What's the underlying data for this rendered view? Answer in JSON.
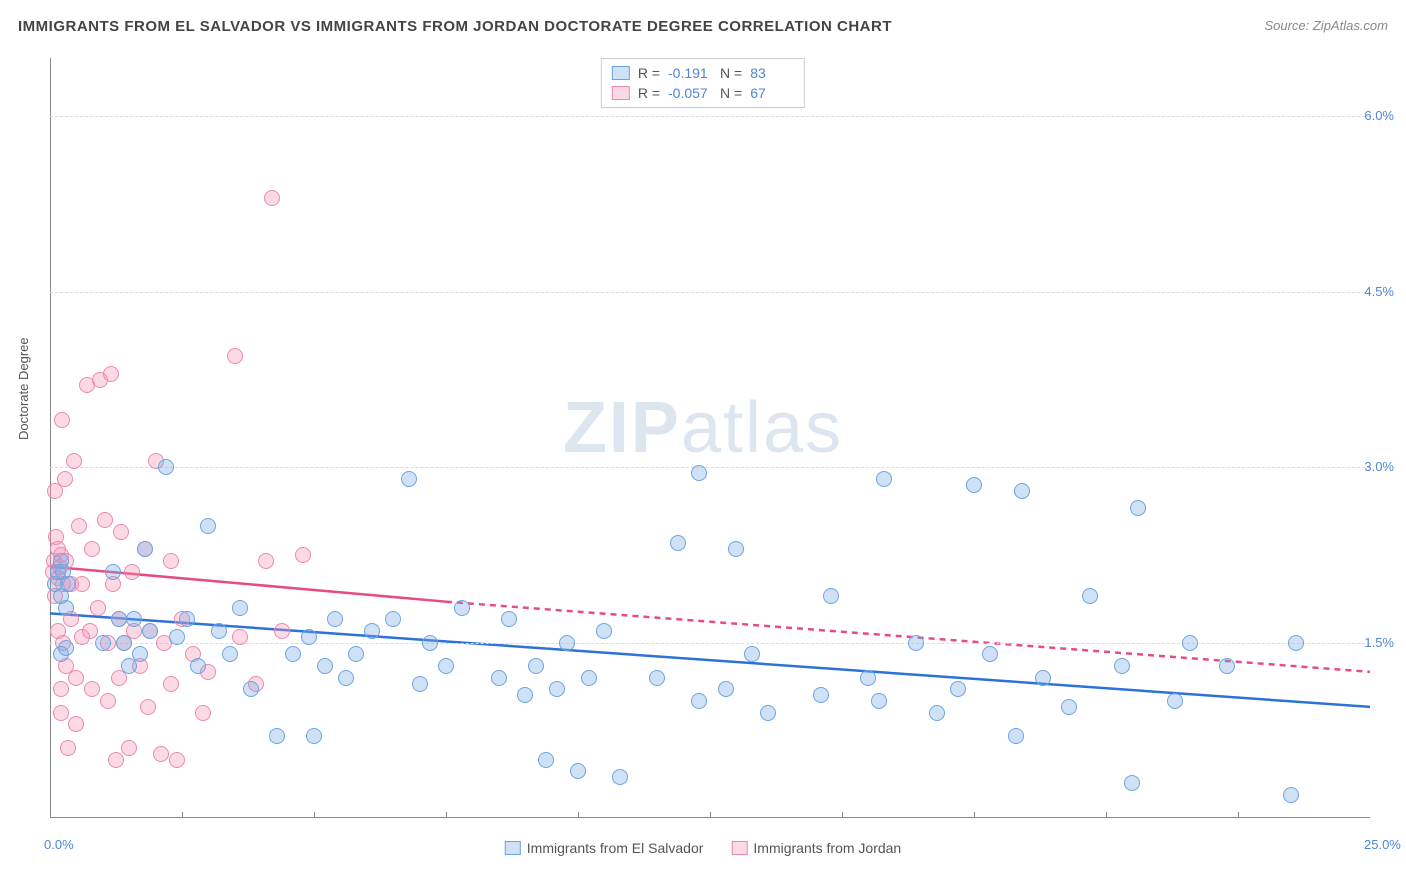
{
  "title": "IMMIGRANTS FROM EL SALVADOR VS IMMIGRANTS FROM JORDAN DOCTORATE DEGREE CORRELATION CHART",
  "source_label": "Source: ",
  "source_name": "ZipAtlas.com",
  "yaxis_label": "Doctorate Degree",
  "watermark_zip": "ZIP",
  "watermark_atlas": "atlas",
  "colors": {
    "blue_fill": "rgba(120,170,230,0.35)",
    "blue_stroke": "#6aa5e3",
    "pink_fill": "rgba(245,150,180,0.35)",
    "pink_stroke": "#ec89ab",
    "blue_line": "#2d72d9",
    "pink_line": "#e64b86",
    "grid": "#dcdcdc",
    "tick_text": "#4d86d6"
  },
  "plot": {
    "xlim": [
      0,
      25
    ],
    "ylim": [
      0,
      6.5
    ],
    "y_gridlines": [
      1.5,
      3.0,
      4.5,
      6.0
    ],
    "x_ticklabels": [
      {
        "x": 0,
        "label": "0.0%"
      },
      {
        "x": 25,
        "label": "25.0%"
      }
    ],
    "y_ticklabels": [
      {
        "y": 1.5,
        "label": "1.5%"
      },
      {
        "y": 3.0,
        "label": "3.0%"
      },
      {
        "y": 4.5,
        "label": "4.5%"
      },
      {
        "y": 6.0,
        "label": "6.0%"
      }
    ],
    "x_minor_ticks": [
      2.5,
      5,
      7.5,
      10,
      12.5,
      15,
      17.5,
      20,
      22.5
    ],
    "y_minor_ticks": [
      0.5,
      1,
      2,
      2.5,
      3.5,
      4,
      5,
      5.5
    ]
  },
  "stat_legend": {
    "rows": [
      {
        "swatch": "blue",
        "r_label": "R =",
        "r_val": "-0.191",
        "n_label": "N =",
        "n_val": "83"
      },
      {
        "swatch": "pink",
        "r_label": "R =",
        "r_val": "-0.057",
        "n_label": "N =",
        "n_val": "67"
      }
    ]
  },
  "series_legend": [
    {
      "swatch": "blue",
      "label": "Immigrants from El Salvador"
    },
    {
      "swatch": "pink",
      "label": "Immigrants from Jordan"
    }
  ],
  "trend_lines": {
    "blue": {
      "x1": 0,
      "y1": 1.75,
      "x2": 25,
      "y2": 0.95
    },
    "pink_solid": {
      "x1": 0,
      "y1": 2.15,
      "x2": 7.5,
      "y2": 1.85
    },
    "pink_dash": {
      "x1": 7.5,
      "y1": 1.85,
      "x2": 25,
      "y2": 1.25
    }
  },
  "series": {
    "blue": [
      [
        0.1,
        2.0
      ],
      [
        0.15,
        2.1
      ],
      [
        0.2,
        1.9
      ],
      [
        0.2,
        2.2
      ],
      [
        0.2,
        1.4
      ],
      [
        0.25,
        2.1
      ],
      [
        0.3,
        1.8
      ],
      [
        0.3,
        1.45
      ],
      [
        0.35,
        2.0
      ],
      [
        1.0,
        1.5
      ],
      [
        1.2,
        2.1
      ],
      [
        1.3,
        1.7
      ],
      [
        1.4,
        1.5
      ],
      [
        1.5,
        1.3
      ],
      [
        1.6,
        1.7
      ],
      [
        1.7,
        1.4
      ],
      [
        1.8,
        2.3
      ],
      [
        1.9,
        1.6
      ],
      [
        2.2,
        3.0
      ],
      [
        2.4,
        1.55
      ],
      [
        2.6,
        1.7
      ],
      [
        2.8,
        1.3
      ],
      [
        3.0,
        2.5
      ],
      [
        3.2,
        1.6
      ],
      [
        3.4,
        1.4
      ],
      [
        3.6,
        1.8
      ],
      [
        3.8,
        1.1
      ],
      [
        4.3,
        0.7
      ],
      [
        4.6,
        1.4
      ],
      [
        4.9,
        1.55
      ],
      [
        5.0,
        0.7
      ],
      [
        5.2,
        1.3
      ],
      [
        5.4,
        1.7
      ],
      [
        5.6,
        1.2
      ],
      [
        5.8,
        1.4
      ],
      [
        6.1,
        1.6
      ],
      [
        6.8,
        2.9
      ],
      [
        6.5,
        1.7
      ],
      [
        7.0,
        1.15
      ],
      [
        7.2,
        1.5
      ],
      [
        7.5,
        1.3
      ],
      [
        7.8,
        1.8
      ],
      [
        8.5,
        1.2
      ],
      [
        8.7,
        1.7
      ],
      [
        9.0,
        1.05
      ],
      [
        9.2,
        1.3
      ],
      [
        9.4,
        0.5
      ],
      [
        9.6,
        1.1
      ],
      [
        9.8,
        1.5
      ],
      [
        10.0,
        0.4
      ],
      [
        10.2,
        1.2
      ],
      [
        10.5,
        1.6
      ],
      [
        10.8,
        0.35
      ],
      [
        11.5,
        1.2
      ],
      [
        11.9,
        2.35
      ],
      [
        12.3,
        2.95
      ],
      [
        12.3,
        1.0
      ],
      [
        12.8,
        1.1
      ],
      [
        13.0,
        2.3
      ],
      [
        13.3,
        1.4
      ],
      [
        13.6,
        0.9
      ],
      [
        14.6,
        1.05
      ],
      [
        14.8,
        1.9
      ],
      [
        15.5,
        1.2
      ],
      [
        15.7,
        1.0
      ],
      [
        15.8,
        2.9
      ],
      [
        16.4,
        1.5
      ],
      [
        16.8,
        0.9
      ],
      [
        17.2,
        1.1
      ],
      [
        17.5,
        2.85
      ],
      [
        17.8,
        1.4
      ],
      [
        18.3,
        0.7
      ],
      [
        18.4,
        2.8
      ],
      [
        18.8,
        1.2
      ],
      [
        19.3,
        0.95
      ],
      [
        19.7,
        1.9
      ],
      [
        20.3,
        1.3
      ],
      [
        20.5,
        0.3
      ],
      [
        20.6,
        2.65
      ],
      [
        21.3,
        1.0
      ],
      [
        21.6,
        1.5
      ],
      [
        22.3,
        1.3
      ],
      [
        23.5,
        0.2
      ],
      [
        23.6,
        1.5
      ]
    ],
    "pink": [
      [
        0.05,
        2.1
      ],
      [
        0.07,
        2.2
      ],
      [
        0.1,
        2.8
      ],
      [
        0.1,
        1.9
      ],
      [
        0.12,
        2.4
      ],
      [
        0.15,
        2.05
      ],
      [
        0.15,
        2.3
      ],
      [
        0.15,
        1.6
      ],
      [
        0.18,
        2.15
      ],
      [
        0.2,
        2.25
      ],
      [
        0.2,
        1.1
      ],
      [
        0.2,
        0.9
      ],
      [
        0.22,
        3.4
      ],
      [
        0.25,
        2.0
      ],
      [
        0.25,
        1.5
      ],
      [
        0.28,
        2.9
      ],
      [
        0.3,
        2.2
      ],
      [
        0.3,
        1.3
      ],
      [
        0.35,
        0.6
      ],
      [
        0.4,
        2.0
      ],
      [
        0.4,
        1.7
      ],
      [
        0.45,
        3.05
      ],
      [
        0.5,
        1.2
      ],
      [
        0.5,
        0.8
      ],
      [
        0.55,
        2.5
      ],
      [
        0.6,
        1.55
      ],
      [
        0.6,
        2.0
      ],
      [
        0.7,
        3.7
      ],
      [
        0.75,
        1.6
      ],
      [
        0.8,
        2.3
      ],
      [
        0.8,
        1.1
      ],
      [
        0.9,
        1.8
      ],
      [
        0.95,
        3.75
      ],
      [
        1.05,
        2.55
      ],
      [
        1.1,
        1.0
      ],
      [
        1.1,
        1.5
      ],
      [
        1.15,
        3.8
      ],
      [
        1.2,
        2.0
      ],
      [
        1.25,
        0.5
      ],
      [
        1.3,
        1.7
      ],
      [
        1.3,
        1.2
      ],
      [
        1.35,
        2.45
      ],
      [
        1.4,
        1.5
      ],
      [
        1.5,
        0.6
      ],
      [
        1.55,
        2.1
      ],
      [
        1.6,
        1.6
      ],
      [
        1.7,
        1.3
      ],
      [
        1.8,
        2.3
      ],
      [
        1.85,
        0.95
      ],
      [
        1.9,
        1.6
      ],
      [
        2.0,
        3.05
      ],
      [
        2.1,
        0.55
      ],
      [
        2.15,
        1.5
      ],
      [
        2.3,
        1.15
      ],
      [
        2.3,
        2.2
      ],
      [
        2.4,
        0.5
      ],
      [
        2.5,
        1.7
      ],
      [
        2.7,
        1.4
      ],
      [
        2.9,
        0.9
      ],
      [
        3.0,
        1.25
      ],
      [
        3.5,
        3.95
      ],
      [
        3.6,
        1.55
      ],
      [
        3.9,
        1.15
      ],
      [
        4.1,
        2.2
      ],
      [
        4.2,
        5.3
      ],
      [
        4.4,
        1.6
      ],
      [
        4.8,
        2.25
      ]
    ]
  }
}
